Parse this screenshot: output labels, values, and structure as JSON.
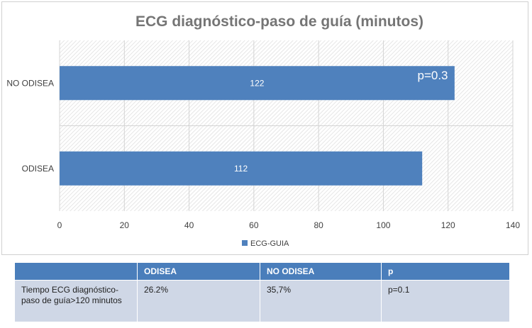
{
  "chart_data": {
    "type": "bar",
    "orientation": "horizontal",
    "title": "ECG diagnóstico-paso de guía (minutos)",
    "categories": [
      "NO ODISEA",
      "ODISEA"
    ],
    "series": [
      {
        "name": "ECG-GUIA",
        "values": [
          122,
          112
        ]
      }
    ],
    "data_labels": [
      "122",
      "112"
    ],
    "xlim": [
      0,
      140
    ],
    "x_ticks": [
      0,
      20,
      40,
      60,
      80,
      100,
      120,
      140
    ],
    "grid": true,
    "legend_position": "bottom",
    "annotation": "p=0.3",
    "bar_color": "#4f81bd"
  },
  "table": {
    "headers": [
      "",
      "ODISEA",
      "NO ODISEA",
      "p"
    ],
    "rows": [
      {
        "label_lines": [
          "Tiempo ECG diagnóstico-",
          "paso de guía>120 minutos"
        ],
        "odisea": "26.2%",
        "no_odisea": "35,7%",
        "p": "p=0.1"
      }
    ]
  }
}
